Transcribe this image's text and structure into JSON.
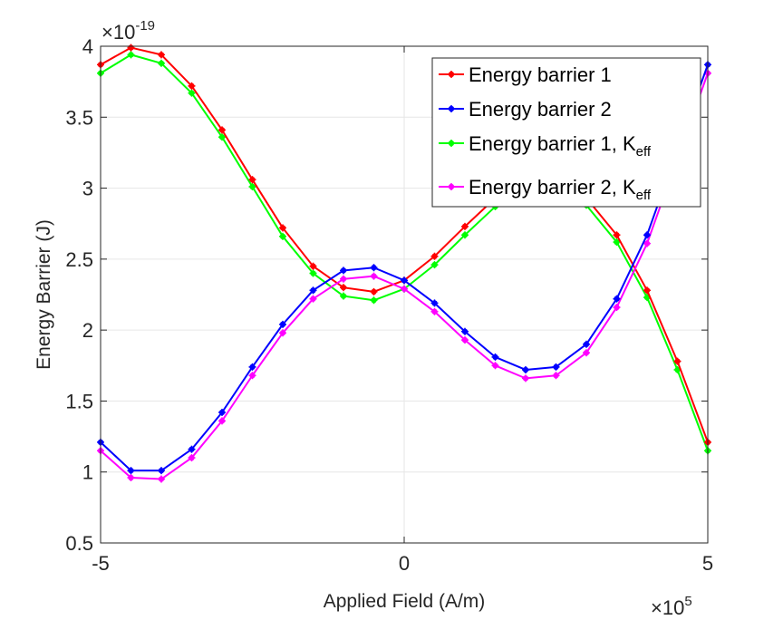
{
  "chart_data": {
    "type": "line",
    "title": "",
    "xlabel": "Applied Field (A/m)",
    "ylabel": "Energy Barrier (J)",
    "x_exponent_label": "×10",
    "x_exponent_power": "5",
    "y_exponent_label": "×10",
    "y_exponent_power": "-19",
    "xlim": [
      -5,
      5
    ],
    "ylim": [
      0.5,
      4
    ],
    "xticks": [
      -5,
      0,
      5
    ],
    "xtick_labels": [
      "-5",
      "0",
      "5"
    ],
    "yticks": [
      0.5,
      1,
      1.5,
      2,
      2.5,
      3,
      3.5,
      4
    ],
    "ytick_labels": [
      "0.5",
      "1",
      "1.5",
      "2",
      "2.5",
      "3",
      "3.5",
      "4"
    ],
    "grid": true,
    "legend_position": "top-right",
    "x": [
      -5,
      -4.5,
      -4,
      -3.5,
      -3,
      -2.5,
      -2,
      -1.5,
      -1,
      -0.5,
      0,
      0.5,
      1,
      1.5,
      2,
      2.5,
      3,
      3.5,
      4,
      4.5,
      5
    ],
    "series": [
      {
        "name": "Energy barrier 1",
        "color": "#ff0000",
        "values": [
          3.87,
          3.99,
          3.94,
          3.72,
          3.41,
          3.06,
          2.72,
          2.45,
          2.3,
          2.27,
          2.35,
          2.52,
          2.73,
          2.93,
          3.05,
          3.05,
          2.93,
          2.67,
          2.28,
          1.78,
          1.21
        ]
      },
      {
        "name": "Energy barrier 2",
        "color": "#0000ff",
        "values": [
          1.21,
          1.01,
          1.01,
          1.16,
          1.42,
          1.74,
          2.04,
          2.28,
          2.42,
          2.44,
          2.35,
          2.19,
          1.99,
          1.81,
          1.72,
          1.74,
          1.9,
          2.22,
          2.67,
          3.27,
          3.87
        ]
      },
      {
        "name": "Energy barrier 1, K",
        "name_subscript": "eff",
        "color": "#00ff00",
        "values": [
          3.81,
          3.94,
          3.88,
          3.67,
          3.36,
          3.01,
          2.66,
          2.4,
          2.24,
          2.21,
          2.29,
          2.46,
          2.67,
          2.87,
          2.99,
          3.0,
          2.88,
          2.62,
          2.23,
          1.72,
          1.15
        ]
      },
      {
        "name": "Energy barrier 2, K",
        "name_subscript": "eff",
        "color": "#ff00ff",
        "values": [
          1.15,
          0.96,
          0.95,
          1.1,
          1.36,
          1.68,
          1.98,
          2.22,
          2.36,
          2.38,
          2.29,
          2.13,
          1.93,
          1.75,
          1.66,
          1.68,
          1.84,
          2.16,
          2.61,
          3.21,
          3.81
        ]
      }
    ]
  }
}
